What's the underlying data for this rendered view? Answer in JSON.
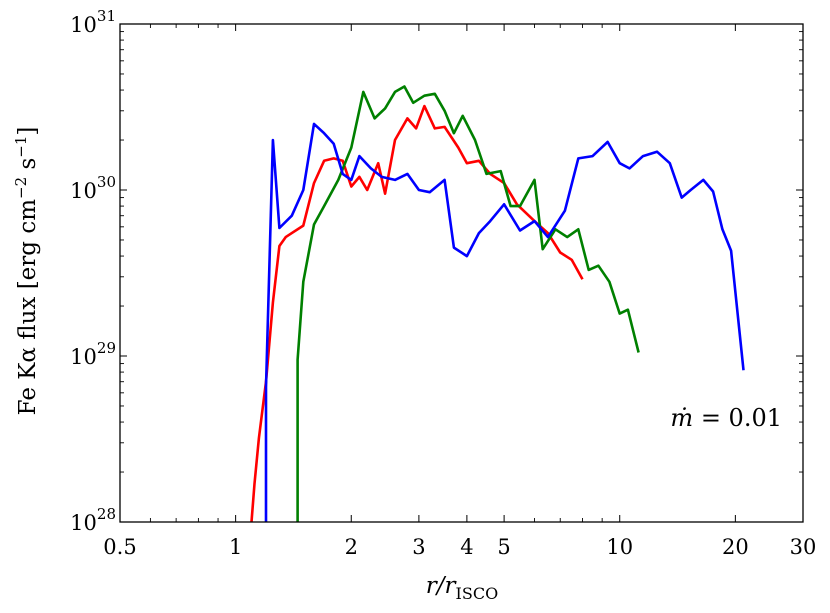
{
  "chart_data": {
    "type": "line",
    "xscale": "log",
    "yscale": "log",
    "xlim": [
      0.5,
      30
    ],
    "ylim": [
      1e+28,
      1e+31
    ],
    "xticks": [
      {
        "value": 0.5,
        "label": "0.5"
      },
      {
        "value": 1,
        "label": "1"
      },
      {
        "value": 2,
        "label": "2"
      },
      {
        "value": 3,
        "label": "3"
      },
      {
        "value": 4,
        "label": "4"
      },
      {
        "value": 5,
        "label": "5"
      },
      {
        "value": 10,
        "label": "10"
      },
      {
        "value": 20,
        "label": "20"
      },
      {
        "value": 30,
        "label": "30"
      }
    ],
    "yticks": [
      {
        "value": 1e+28,
        "base": "10",
        "exp": "28"
      },
      {
        "value": 1e+29,
        "base": "10",
        "exp": "29"
      },
      {
        "value": 1e+30,
        "base": "10",
        "exp": "30"
      },
      {
        "value": 1e+31,
        "base": "10",
        "exp": "31"
      }
    ],
    "xlabel": {
      "main": "r/r",
      "sub": "ISCO"
    },
    "ylabel": {
      "main": "Fe Kα flux  [erg cm",
      "exp1": "−2",
      "mid": " s",
      "exp2": "−1",
      "end": "]"
    },
    "annotation": {
      "prefix": "ṁ",
      "value": " = 0.01"
    },
    "grid": false,
    "series": [
      {
        "color": "#ff0000",
        "x": [
          1.1,
          1.12,
          1.15,
          1.2,
          1.25,
          1.3,
          1.35,
          1.4,
          1.5,
          1.6,
          1.7,
          1.8,
          1.9,
          2.0,
          2.1,
          2.2,
          2.35,
          2.45,
          2.6,
          2.8,
          2.95,
          3.1,
          3.3,
          3.5,
          3.8,
          4.0,
          4.3,
          4.6,
          5.0,
          5.4,
          6.0,
          6.5,
          7.0,
          7.5,
          8.0
        ],
        "y": [
          1e+28,
          1.7e+28,
          3.2e+28,
          7e+28,
          2.1e+29,
          4.6e+29,
          5.2e+29,
          5.5e+29,
          6.1e+29,
          1.1e+30,
          1.5e+30,
          1.55e+30,
          1.5e+30,
          1.05e+30,
          1.2e+30,
          1e+30,
          1.45e+30,
          9.5e+29,
          2e+30,
          2.7e+30,
          2.35e+30,
          3.2e+30,
          2.35e+30,
          2.4e+30,
          1.8e+30,
          1.45e+30,
          1.5e+30,
          1.25e+30,
          1.1e+30,
          8.2e+29,
          6.5e+29,
          5.5e+29,
          4.2e+29,
          3.8e+29,
          2.9e+29
        ]
      },
      {
        "color": "#008000",
        "x": [
          1.45,
          1.45,
          1.5,
          1.6,
          1.7,
          1.85,
          2.0,
          2.15,
          2.3,
          2.45,
          2.6,
          2.75,
          2.9,
          3.1,
          3.3,
          3.5,
          3.7,
          3.9,
          4.2,
          4.5,
          4.9,
          5.2,
          5.5,
          6.0,
          6.3,
          6.8,
          7.3,
          7.8,
          8.3,
          8.8,
          9.4,
          10.0,
          10.5,
          11.2
        ],
        "y": [
          1e+28,
          9.5e+28,
          2.8e+29,
          6.2e+29,
          8e+29,
          1.15e+30,
          1.8e+30,
          3.9e+30,
          2.7e+30,
          3.1e+30,
          3.9e+30,
          4.2e+30,
          3.35e+30,
          3.7e+30,
          3.8e+30,
          3e+30,
          2.2e+30,
          2.8e+30,
          2e+30,
          1.25e+30,
          1.3e+30,
          8e+29,
          8e+29,
          1.15e+30,
          4.4e+29,
          5.8e+29,
          5.2e+29,
          5.8e+29,
          3.3e+29,
          3.5e+29,
          2.8e+29,
          1.8e+29,
          1.9e+29,
          1.05e+29
        ]
      },
      {
        "color": "#0000ff",
        "x": [
          1.2,
          1.2,
          1.25,
          1.3,
          1.4,
          1.5,
          1.6,
          1.7,
          1.8,
          1.9,
          2.0,
          2.1,
          2.25,
          2.4,
          2.6,
          2.8,
          3.0,
          3.2,
          3.5,
          3.7,
          4.0,
          4.3,
          4.6,
          5.0,
          5.5,
          6.0,
          6.5,
          7.2,
          7.8,
          8.5,
          9.3,
          10.0,
          10.6,
          11.5,
          12.5,
          13.5,
          14.5,
          15.3,
          16.5,
          17.5,
          18.5,
          19.5,
          21.0
        ],
        "y": [
          1e+28,
          6.5e+28,
          2e+30,
          5.9e+29,
          7e+29,
          1e+30,
          2.5e+30,
          2.2e+30,
          1.9e+30,
          1.25e+30,
          1.15e+30,
          1.6e+30,
          1.35e+30,
          1.2e+30,
          1.15e+30,
          1.25e+30,
          1e+30,
          9.7e+29,
          1.15e+30,
          4.5e+29,
          4e+29,
          5.5e+29,
          6.5e+29,
          8.2e+29,
          5.7e+29,
          6.5e+29,
          5.2e+29,
          7.5e+29,
          1.55e+30,
          1.6e+30,
          1.95e+30,
          1.45e+30,
          1.35e+30,
          1.6e+30,
          1.7e+30,
          1.45e+30,
          9e+29,
          1e+30,
          1.15e+30,
          9.8e+29,
          5.8e+29,
          4.3e+29,
          8.2e+28
        ]
      }
    ]
  }
}
